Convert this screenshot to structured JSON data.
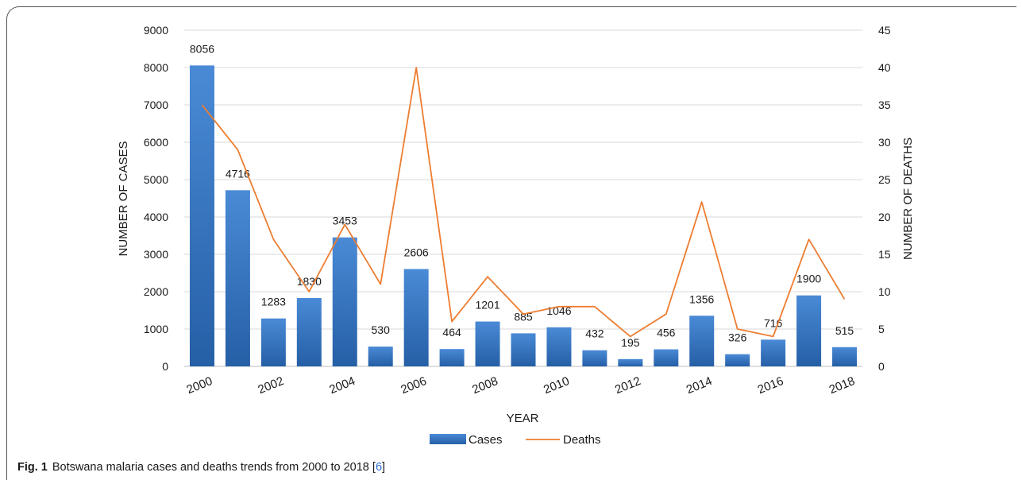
{
  "chart_data": {
    "type": "bar",
    "title": "",
    "xlabel": "YEAR",
    "ylabel": "NUMBER OF CASES",
    "y2label": "NUMBER OF DEATHS",
    "ylim": [
      0,
      9000
    ],
    "y2lim": [
      0,
      45
    ],
    "yticks": [
      "0",
      "1000",
      "2000",
      "3000",
      "4000",
      "5000",
      "6000",
      "7000",
      "8000",
      "9000"
    ],
    "y2ticks": [
      "0",
      "5",
      "10",
      "15",
      "20",
      "25",
      "30",
      "35",
      "40",
      "45"
    ],
    "categories": [
      "2000",
      "2001",
      "2002",
      "2003",
      "2004",
      "2005",
      "2006",
      "2007",
      "2008",
      "2009",
      "2010",
      "2011",
      "2012",
      "2013",
      "2014",
      "2015",
      "2016",
      "2017",
      "2018"
    ],
    "xtick_labels": [
      "2000",
      "",
      "2002",
      "",
      "2004",
      "",
      "2006",
      "",
      "2008",
      "",
      "2010",
      "",
      "2012",
      "",
      "2014",
      "",
      "2016",
      "",
      "2018"
    ],
    "series": [
      {
        "name": "Cases",
        "type": "bar",
        "axis": "left",
        "color": "#2f6fbd",
        "values": [
          8056,
          4716,
          1283,
          1830,
          3453,
          530,
          2606,
          464,
          1201,
          885,
          1046,
          432,
          195,
          456,
          1356,
          326,
          716,
          1900,
          515
        ],
        "data_labels": [
          "8056",
          "4716",
          "1283",
          "1830",
          "3453",
          "530",
          "2606",
          "464",
          "1201",
          "885",
          "1046",
          "432",
          "195",
          "456",
          "1356",
          "326",
          "716",
          "1900",
          "515"
        ]
      },
      {
        "name": "Deaths",
        "type": "line",
        "axis": "right",
        "color": "#ed7d31",
        "values": [
          35,
          29,
          17,
          10,
          19,
          11,
          40,
          6,
          12,
          7,
          8,
          8,
          4,
          7,
          22,
          5,
          4,
          17,
          9
        ]
      }
    ],
    "grid": true,
    "legend": "bottom-center"
  },
  "caption": {
    "label": "Fig. 1",
    "text": "Botswana malaria cases and deaths trends from 2000 to 2018 [",
    "ref": "6",
    "close": "]"
  }
}
